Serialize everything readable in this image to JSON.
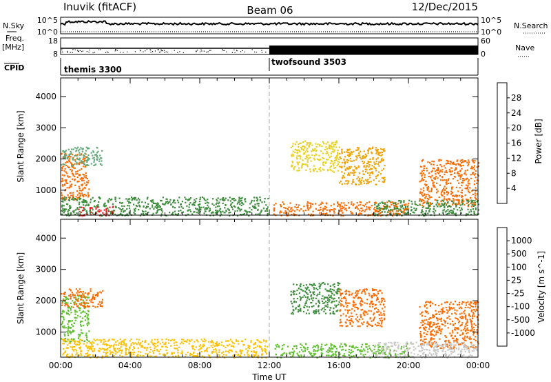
{
  "header": {
    "station": "Inuvik (fitACF)",
    "beam": "Beam 06",
    "date": "12/Dec/2015"
  },
  "strip_labels": {
    "nsky": "N.Sky",
    "nsearch": "N.Search",
    "freq_top": "Freq.",
    "freq_unit": "[MHz]",
    "nave": "Nave",
    "cpid": "CPID",
    "nsky_ticks": [
      "10^5",
      "10^0"
    ],
    "nsearch_ticks": [
      "10^5",
      "10^0"
    ],
    "freq_ticks": [
      "18",
      "8"
    ],
    "nave_ticks": [
      "60",
      "0"
    ]
  },
  "cpid_segments": [
    {
      "label": "themis 3300",
      "start_hour": 0
    },
    {
      "label": "twofsound 3503",
      "start_hour": 12
    }
  ],
  "colors": {
    "power": [
      "#1010e0",
      "#2050b0",
      "#3c8c3c",
      "#60a878",
      "#e8d020",
      "#f0a000",
      "#ff6a00",
      "#ee1c1c"
    ],
    "velocity": [
      "#e01010",
      "#ff6a00",
      "#f0a000",
      "#ffc000",
      "#c8c8c8",
      "#60c030",
      "#3c8c3c",
      "#2050b0",
      "#1010e0"
    ]
  },
  "chart_data": [
    {
      "type": "heatmap",
      "title": "Power",
      "ylabel": "Slant Range [km]",
      "xlabel": "",
      "xlim": [
        0,
        24
      ],
      "ylim": [
        200,
        4600
      ],
      "yticks": [
        1000,
        2000,
        3000,
        4000
      ],
      "colorbar": {
        "label": "Power [dB]",
        "ticks": [
          4,
          8,
          12,
          16,
          20,
          24,
          28
        ],
        "range": [
          0,
          32
        ]
      },
      "regions": [
        {
          "x": [
            0,
            1.6
          ],
          "y": [
            700,
            2200
          ],
          "value": 26
        },
        {
          "x": [
            0,
            2.4
          ],
          "y": [
            1800,
            2400
          ],
          "value": 14
        },
        {
          "x": [
            0,
            11.9
          ],
          "y": [
            200,
            800
          ],
          "value": 8
        },
        {
          "x": [
            1,
            3
          ],
          "y": [
            200,
            500
          ],
          "value": 28
        },
        {
          "x": [
            12.2,
            20
          ],
          "y": [
            200,
            650
          ],
          "value": 26
        },
        {
          "x": [
            13.2,
            16
          ],
          "y": [
            1600,
            2600
          ],
          "value": 18
        },
        {
          "x": [
            16,
            18.6
          ],
          "y": [
            1200,
            2400
          ],
          "value": 22
        },
        {
          "x": [
            20.6,
            24
          ],
          "y": [
            500,
            2000
          ],
          "value": 26
        },
        {
          "x": [
            18,
            24
          ],
          "y": [
            200,
            700
          ],
          "value": 10
        }
      ]
    },
    {
      "type": "heatmap",
      "title": "Velocity",
      "ylabel": "Slant Range [km]",
      "xlabel": "Time UT",
      "xlim": [
        0,
        24
      ],
      "ylim": [
        200,
        4600
      ],
      "yticks": [
        1000,
        2000,
        3000,
        4000
      ],
      "xticks": [
        "00:00",
        "04:00",
        "08:00",
        "12:00",
        "16:00",
        "20:00",
        "00:00"
      ],
      "colorbar": {
        "label": "Velocity [m s^-1]",
        "ticks": [
          1000,
          500,
          100,
          25,
          -25,
          -100,
          -500,
          -1000
        ]
      },
      "regions": [
        {
          "x": [
            0,
            1.6
          ],
          "y": [
            700,
            2200
          ],
          "value": 100
        },
        {
          "x": [
            0,
            2.4
          ],
          "y": [
            1800,
            2400
          ],
          "value": -100
        },
        {
          "x": [
            0,
            11.9
          ],
          "y": [
            200,
            800
          ],
          "value": -25
        },
        {
          "x": [
            12.2,
            20
          ],
          "y": [
            200,
            650
          ],
          "value": 100
        },
        {
          "x": [
            13.2,
            16
          ],
          "y": [
            1600,
            2600
          ],
          "value": 500
        },
        {
          "x": [
            16,
            18.6
          ],
          "y": [
            1200,
            2400
          ],
          "value": -300
        },
        {
          "x": [
            20.6,
            24
          ],
          "y": [
            500,
            2000
          ],
          "value": -400
        },
        {
          "x": [
            18,
            24
          ],
          "y": [
            200,
            700
          ],
          "value": 20
        }
      ]
    }
  ]
}
